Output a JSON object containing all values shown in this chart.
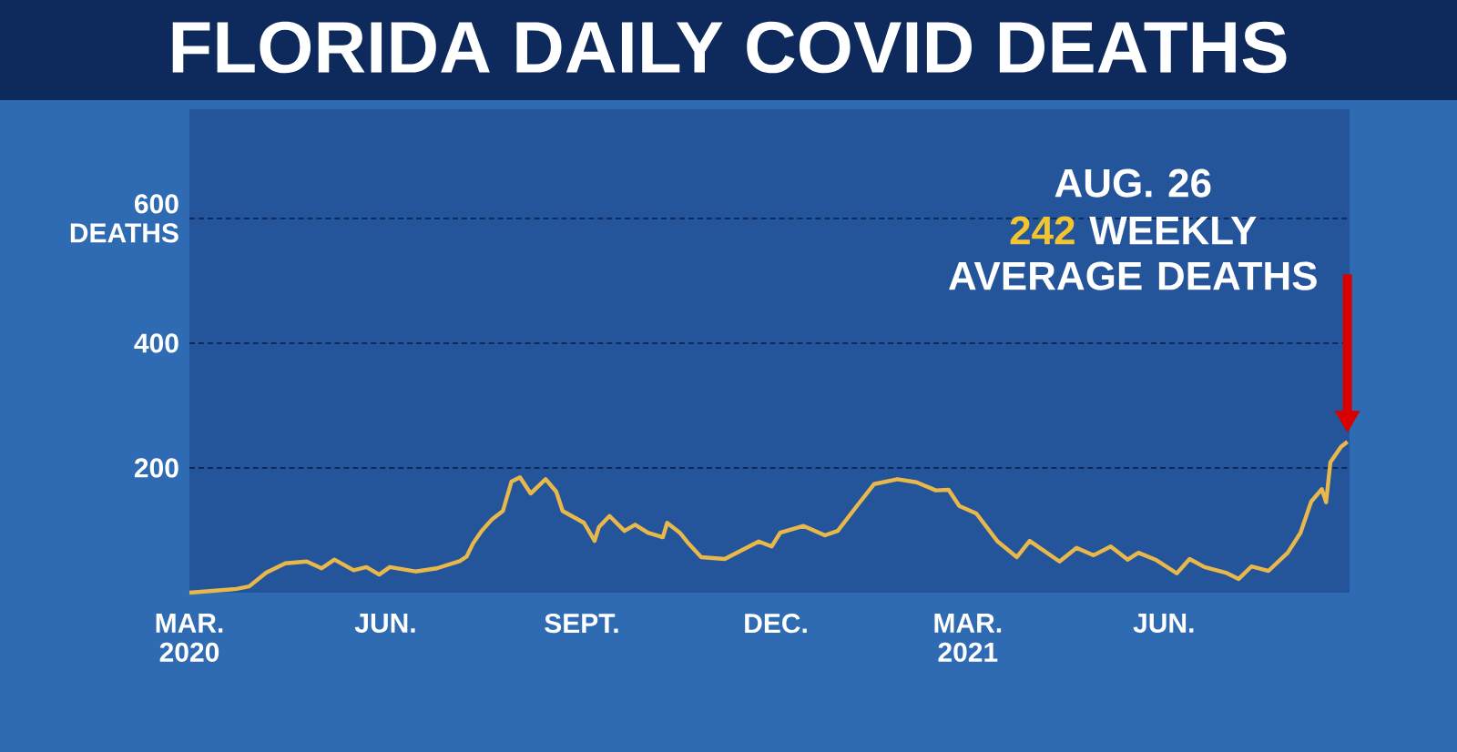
{
  "chart_data": {
    "type": "line",
    "title": "FLORIDA DAILY COVID DEATHS",
    "x": [
      "2020-03-01",
      "2020-03-23",
      "2020-03-29",
      "2020-04-06",
      "2020-04-15",
      "2020-04-25",
      "2020-05-02",
      "2020-05-08",
      "2020-05-17",
      "2020-05-23",
      "2020-05-29",
      "2020-06-03",
      "2020-06-15",
      "2020-06-25",
      "2020-07-06",
      "2020-07-09",
      "2020-07-12",
      "2020-07-16",
      "2020-07-21",
      "2020-07-26",
      "2020-07-30",
      "2020-08-03",
      "2020-08-08",
      "2020-08-15",
      "2020-08-20",
      "2020-08-23",
      "2020-09-02",
      "2020-09-07",
      "2020-09-09",
      "2020-09-14",
      "2020-09-21",
      "2020-09-26",
      "2020-10-02",
      "2020-10-09",
      "2020-10-11",
      "2020-10-17",
      "2020-10-21",
      "2020-10-27",
      "2020-11-07",
      "2020-11-23",
      "2020-11-29",
      "2020-12-03",
      "2020-12-14",
      "2020-12-24",
      "2020-12-30",
      "2021-01-08",
      "2021-01-16",
      "2021-01-27",
      "2021-02-05",
      "2021-02-14",
      "2021-02-20",
      "2021-02-25",
      "2021-03-05",
      "2021-03-15",
      "2021-03-24",
      "2021-03-30",
      "2021-04-13",
      "2021-04-21",
      "2021-04-29",
      "2021-05-07",
      "2021-05-15",
      "2021-05-20",
      "2021-05-28",
      "2021-06-07",
      "2021-06-13",
      "2021-06-20",
      "2021-06-30",
      "2021-07-06",
      "2021-07-12",
      "2021-07-20",
      "2021-07-29",
      "2021-08-04",
      "2021-08-09",
      "2021-08-14",
      "2021-08-16",
      "2021-08-18",
      "2021-08-23",
      "2021-08-26"
    ],
    "values": [
      0,
      6,
      10,
      32,
      47,
      50,
      39,
      53,
      36,
      41,
      29,
      41,
      34,
      39,
      51,
      58,
      79,
      99,
      118,
      131,
      178,
      185,
      159,
      182,
      162,
      131,
      112,
      83,
      105,
      123,
      99,
      109,
      96,
      89,
      112,
      96,
      79,
      57,
      54,
      82,
      74,
      96,
      107,
      92,
      99,
      139,
      174,
      182,
      177,
      164,
      165,
      139,
      127,
      82,
      57,
      83,
      50,
      72,
      60,
      74,
      53,
      64,
      53,
      31,
      54,
      41,
      32,
      22,
      42,
      35,
      64,
      96,
      146,
      166,
      145,
      209,
      234,
      242
    ],
    "color": "#e8b84a",
    "xlim": [
      "2020-03-01",
      "2021-08-27"
    ],
    "xticks": [
      {
        "value": "2020-03-01",
        "label": "MAR. 2020"
      },
      {
        "value": "2020-06-01",
        "label": "JUN."
      },
      {
        "value": "2020-09-01",
        "label": "SEPT."
      },
      {
        "value": "2020-12-01",
        "label": "DEC."
      },
      {
        "value": "2021-03-01",
        "label": "MAR. 2021"
      },
      {
        "value": "2021-06-01",
        "label": "JUN."
      }
    ],
    "ylim": [
      0,
      775
    ],
    "yticks": [
      200,
      400,
      {
        "value": 600,
        "label": "600 DEATHS"
      }
    ],
    "grid": "y",
    "line_style": "solid",
    "marker": "none",
    "annotations": [
      "AUG. 26",
      "**242** WEEKLY AVERAGE DEATHS"
    ]
  }
}
